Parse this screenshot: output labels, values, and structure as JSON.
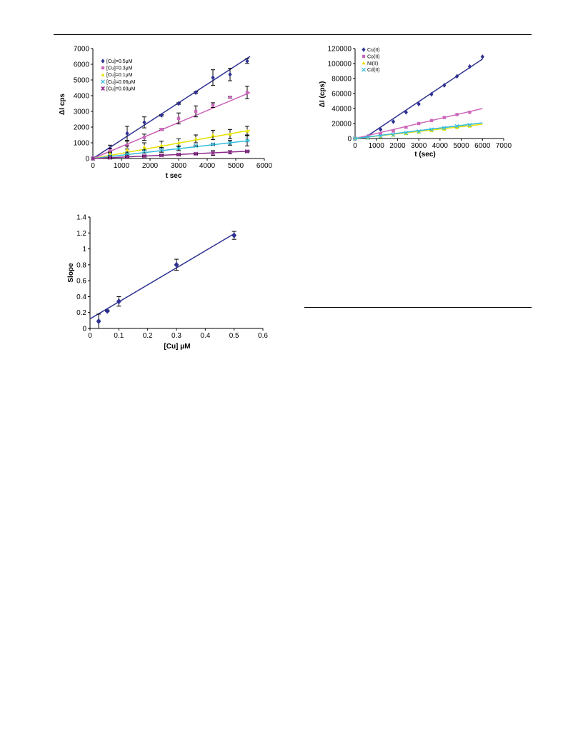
{
  "chart_data": [
    {
      "id": "chart1",
      "type": "line",
      "xlabel": "t   sec",
      "ylabel": "ΔI   cps",
      "xlim": [
        0,
        6000
      ],
      "ylim": [
        0,
        7000
      ],
      "xticks": [
        0,
        1000,
        2000,
        3000,
        4000,
        5000,
        6000
      ],
      "yticks": [
        0,
        1000,
        2000,
        3000,
        4000,
        5000,
        6000,
        7000
      ],
      "legend_position": "top-left",
      "series": [
        {
          "name": "[Cu]=0.5μM",
          "color": "#2e3192",
          "marker": "diamond",
          "x": [
            0,
            600,
            1200,
            1800,
            2400,
            3000,
            3600,
            4200,
            4800,
            5400
          ],
          "y": [
            0,
            650,
            1600,
            2300,
            2750,
            3500,
            4200,
            5150,
            5350,
            6200
          ],
          "err": [
            0,
            200,
            450,
            350,
            50,
            50,
            50,
            500,
            400,
            150
          ],
          "fit": [
            [
              0,
              0
            ],
            [
              5500,
              6500
            ]
          ]
        },
        {
          "name": "[Cu]=0.3μM",
          "color": "#cc66bb",
          "marker": "square",
          "x": [
            0,
            600,
            1200,
            1800,
            2400,
            3000,
            3600,
            4200,
            4800,
            5400
          ],
          "y": [
            0,
            500,
            850,
            1350,
            1850,
            2550,
            3000,
            3400,
            3900,
            4200
          ],
          "err": [
            0,
            150,
            250,
            200,
            50,
            350,
            350,
            150,
            50,
            400
          ],
          "fit": [
            [
              0,
              0
            ],
            [
              5500,
              4200
            ]
          ]
        },
        {
          "name": "[Cu]=0.1μM",
          "color": "#e8e000",
          "marker": "triangle",
          "x": [
            0,
            600,
            1200,
            1800,
            2400,
            3000,
            3600,
            4200,
            4800,
            5400
          ],
          "y": [
            0,
            300,
            550,
            750,
            850,
            1000,
            1250,
            1500,
            1550,
            1750
          ],
          "err": [
            0,
            100,
            250,
            250,
            250,
            250,
            250,
            300,
            300,
            300
          ],
          "fit": [
            [
              0,
              0
            ],
            [
              5500,
              1800
            ]
          ]
        },
        {
          "name": "[Cu]=0.06μM",
          "color": "#33bbdd",
          "marker": "x",
          "x": [
            0,
            600,
            1200,
            1800,
            2400,
            3000,
            3600,
            4200,
            4800,
            5400
          ],
          "y": [
            0,
            150,
            300,
            450,
            550,
            650,
            800,
            900,
            1000,
            1150
          ],
          "err": [
            0,
            50,
            100,
            100,
            150,
            150,
            50,
            50,
            150,
            350
          ],
          "fit": [
            [
              0,
              0
            ],
            [
              5500,
              1150
            ]
          ]
        },
        {
          "name": "[Cu]=0.03μM",
          "color": "#8b2a8b",
          "marker": "star",
          "x": [
            0,
            600,
            1200,
            1800,
            2400,
            3000,
            3600,
            4200,
            4800,
            5400
          ],
          "y": [
            0,
            50,
            100,
            150,
            200,
            250,
            300,
            350,
            400,
            450
          ],
          "err": [
            0,
            30,
            50,
            50,
            50,
            50,
            50,
            150,
            100,
            50
          ],
          "fit": [
            [
              0,
              0
            ],
            [
              5500,
              470
            ]
          ]
        }
      ]
    },
    {
      "id": "chart2",
      "type": "line",
      "xlabel": "t (sec)",
      "ylabel": "ΔI (cps)",
      "xlim": [
        0,
        7000
      ],
      "ylim": [
        0,
        120000
      ],
      "xticks": [
        0,
        1000,
        2000,
        3000,
        4000,
        5000,
        6000,
        7000
      ],
      "yticks": [
        0,
        20000,
        40000,
        60000,
        80000,
        100000,
        120000
      ],
      "legend_position": "top-left",
      "series": [
        {
          "name": "Cu(II)",
          "color": "#2e3192",
          "marker": "diamond",
          "x": [
            0,
            600,
            1200,
            1800,
            2400,
            3000,
            3600,
            4200,
            4800,
            5400,
            6000
          ],
          "y": [
            0,
            2500,
            12000,
            22500,
            35000,
            46000,
            59000,
            71000,
            83000,
            96000,
            109000
          ],
          "fit": [
            [
              400,
              0
            ],
            [
              6000,
              106000
            ]
          ]
        },
        {
          "name": "Co(II)",
          "color": "#cc66bb",
          "marker": "square",
          "x": [
            0,
            600,
            1200,
            1800,
            2400,
            3000,
            3600,
            4200,
            4800,
            5400
          ],
          "y": [
            0,
            2000,
            6000,
            10000,
            15000,
            20000,
            24000,
            28000,
            32000,
            35000
          ],
          "fit": [
            [
              0,
              0
            ],
            [
              6000,
              40000
            ]
          ]
        },
        {
          "name": "Ni(II)",
          "color": "#e8e000",
          "marker": "triangle",
          "x": [
            0,
            600,
            1200,
            1800,
            2400,
            3000,
            3600,
            4200,
            4800,
            5400
          ],
          "y": [
            0,
            800,
            2500,
            4500,
            6500,
            8500,
            10500,
            12500,
            14500,
            16500
          ],
          "fit": [
            [
              0,
              0
            ],
            [
              6000,
              19000
            ]
          ]
        },
        {
          "name": "Cd(II)",
          "color": "#33bbdd",
          "marker": "x",
          "x": [
            0,
            600,
            1200,
            1800,
            2400,
            3000,
            3600,
            4200,
            4800,
            5400
          ],
          "y": [
            0,
            1000,
            3000,
            5000,
            7500,
            9500,
            12000,
            14000,
            16500,
            18000
          ],
          "fit": [
            [
              0,
              0
            ],
            [
              6000,
              21000
            ]
          ]
        }
      ]
    },
    {
      "id": "chart3",
      "type": "scatter",
      "xlabel": "[Cu]  μM",
      "ylabel": "Slope",
      "xlim": [
        0,
        0.6
      ],
      "ylim": [
        0,
        1.4
      ],
      "xticks": [
        0,
        0.1,
        0.2,
        0.3,
        0.4,
        0.5,
        0.6
      ],
      "yticks": [
        0,
        0.2,
        0.4,
        0.6,
        0.8,
        1,
        1.2,
        1.4
      ],
      "xtick_labels": [
        "0",
        "0.1",
        "0.2",
        "0.3",
        "0.4",
        "0.5",
        "0.6"
      ],
      "ytick_labels": [
        "0",
        "0.2",
        "0.4",
        "0.6",
        "0.8",
        "1",
        "1.2",
        "1.4"
      ],
      "series": [
        {
          "color": "#2e3192",
          "marker": "diamond",
          "x": [
            0.03,
            0.06,
            0.1,
            0.3,
            0.5
          ],
          "y": [
            0.09,
            0.22,
            0.34,
            0.8,
            1.17
          ],
          "err": [
            0.09,
            0.01,
            0.06,
            0.07,
            0.05
          ],
          "fit": [
            [
              0,
              0.12
            ],
            [
              0.5,
              1.19
            ]
          ]
        }
      ]
    }
  ]
}
